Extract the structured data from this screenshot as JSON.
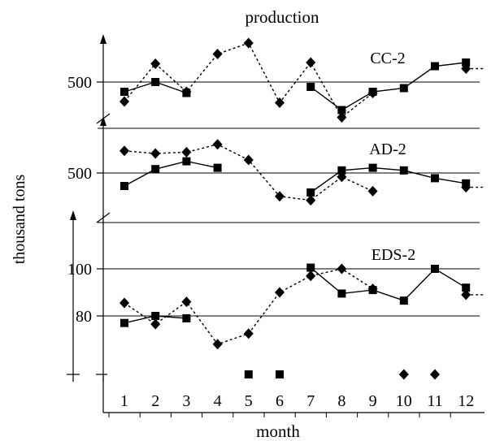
{
  "chart_data": {
    "type": "line",
    "title": "production",
    "xlabel": "month",
    "ylabel": "thousand tons",
    "categories": [
      "1",
      "2",
      "3",
      "4",
      "5",
      "6",
      "7",
      "8",
      "9",
      "10",
      "11",
      "12"
    ],
    "grid": true,
    "panels": [
      {
        "name": "CC-2",
        "ylim": [
          350,
          600
        ],
        "yticks": [
          500
        ],
        "tick_labels": [
          "500"
        ],
        "series": [
          {
            "marker": "square",
            "line": "solid",
            "values": [
              460,
              500,
              455,
              null,
              null,
              null,
              480,
              385,
              460,
              475,
              565,
              580
            ]
          },
          {
            "marker": "diamond",
            "line": "dashed",
            "values": [
              420,
              575,
              460,
              615,
              660,
              415,
              580,
              355,
              455,
              null,
              null,
              555
            ]
          }
        ]
      },
      {
        "name": "AD-2",
        "ylim": [
          340,
          620
        ],
        "yticks": [
          500
        ],
        "tick_labels": [
          "500"
        ],
        "series": [
          {
            "marker": "square",
            "line": "solid",
            "values": [
              450,
              515,
              545,
              520,
              null,
              null,
              425,
              510,
              520,
              510,
              480,
              460
            ]
          },
          {
            "marker": "diamond",
            "line": "dashed",
            "values": [
              585,
              575,
              580,
              610,
              550,
              410,
              395,
              485,
              430,
              null,
              null,
              445
            ]
          }
        ]
      },
      {
        "name": "EDS-2",
        "ylim": [
          60,
          125
        ],
        "yticks": [
          100,
          80
        ],
        "tick_labels": [
          "100",
          "80"
        ],
        "series": [
          {
            "marker": "square",
            "line": "solid",
            "values": [
              77,
              80,
              79,
              null,
              null,
              null,
              100.5,
              89.5,
              91,
              86.5,
              100,
              92
            ]
          },
          {
            "marker": "diamond",
            "line": "dashed",
            "values": [
              85.5,
              76.5,
              86,
              68,
              72.5,
              90,
              97,
              100,
              91.5,
              null,
              null,
              89
            ]
          }
        ],
        "zero_points": {
          "square": [
            5,
            6
          ],
          "diamond": [
            10,
            11
          ]
        }
      }
    ]
  }
}
